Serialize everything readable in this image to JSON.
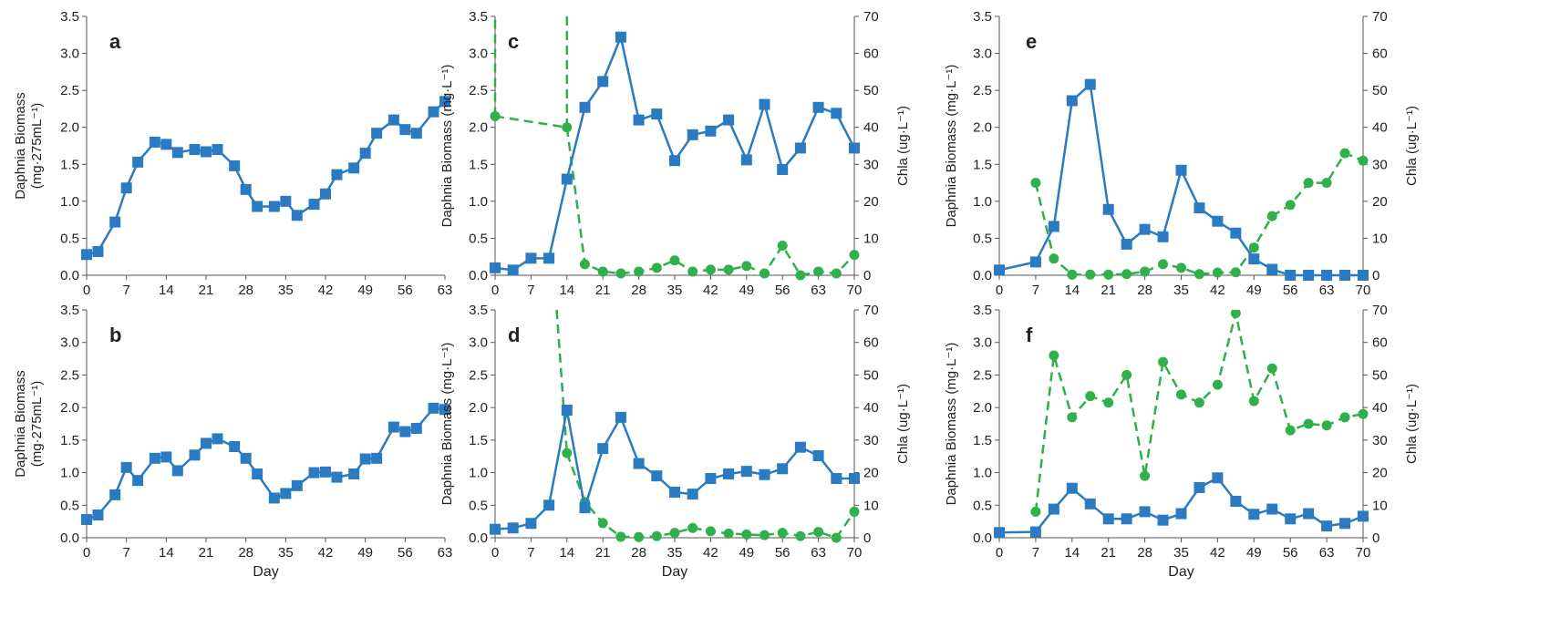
{
  "colors": {
    "daphnia": "#2a7bc1",
    "chla": "#2fb04a",
    "axis": "#555555"
  },
  "labels": {
    "day": "Day",
    "biomass_a": "Daphnia Biomass",
    "biomass_a_unit": "(mg·275mL⁻¹)",
    "biomass_c": "Daphnia Biomass (mg·L⁻¹)",
    "chla": "Chla (ug·L⁻¹)"
  },
  "chart_data": [
    {
      "panel": "a",
      "type": "line",
      "ylabel": "Daphnia Biomass (mg·275mL⁻¹)",
      "xlabel": "",
      "ylim": [
        0,
        3.5
      ],
      "yticks": [
        "0.0",
        "0.5",
        "1.0",
        "1.5",
        "2.0",
        "2.5",
        "3.0",
        "3.5"
      ],
      "xlim": [
        0,
        63
      ],
      "xticks": [
        "0",
        "7",
        "14",
        "21",
        "28",
        "35",
        "42",
        "49",
        "56",
        "63"
      ],
      "series": [
        {
          "marker": "square",
          "x": [
            0,
            2,
            5,
            7,
            9,
            12,
            14,
            16,
            19,
            21,
            23,
            26,
            28,
            30,
            33,
            35,
            37,
            40,
            42,
            44,
            47,
            49,
            51,
            54,
            56,
            58,
            61,
            63
          ],
          "y": [
            0.28,
            0.32,
            0.72,
            1.18,
            1.53,
            1.8,
            1.77,
            1.66,
            1.7,
            1.67,
            1.7,
            1.48,
            1.16,
            0.93,
            0.93,
            1.0,
            0.81,
            0.96,
            1.1,
            1.36,
            1.45,
            1.65,
            1.92,
            2.1,
            1.97,
            1.92,
            2.21,
            2.35
          ]
        }
      ]
    },
    {
      "panel": "b",
      "type": "line",
      "ylabel": "Daphnia Biomass (mg·275mL⁻¹)",
      "xlabel": "Day",
      "ylim": [
        0,
        3.5
      ],
      "yticks": [
        "0.0",
        "0.5",
        "1.0",
        "1.5",
        "2.0",
        "2.5",
        "3.0",
        "3.5"
      ],
      "xlim": [
        0,
        63
      ],
      "xticks": [
        "0",
        "7",
        "14",
        "21",
        "28",
        "35",
        "42",
        "49",
        "56",
        "63"
      ],
      "series": [
        {
          "marker": "square",
          "x": [
            0,
            2,
            5,
            7,
            9,
            12,
            14,
            16,
            19,
            21,
            23,
            26,
            28,
            30,
            33,
            35,
            37,
            40,
            42,
            44,
            47,
            49,
            51,
            54,
            56,
            58,
            61,
            63
          ],
          "y": [
            0.28,
            0.35,
            0.66,
            1.08,
            0.88,
            1.22,
            1.24,
            1.03,
            1.27,
            1.45,
            1.52,
            1.4,
            1.22,
            0.98,
            0.61,
            0.68,
            0.8,
            1.0,
            1.01,
            0.93,
            0.98,
            1.21,
            1.22,
            1.7,
            1.63,
            1.68,
            1.99,
            1.97
          ]
        }
      ]
    },
    {
      "panel": "c",
      "type": "line",
      "ylabel": "Daphnia Biomass (mg·L⁻¹)",
      "y2label": "Chla (ug·L⁻¹)",
      "xlabel": "",
      "ylim": [
        0,
        3.5
      ],
      "y2lim": [
        0,
        70
      ],
      "yticks": [
        "0.0",
        "0.5",
        "1.0",
        "1.5",
        "2.0",
        "2.5",
        "3.0",
        "3.5"
      ],
      "y2ticks": [
        "0",
        "10",
        "20",
        "30",
        "40",
        "50",
        "60",
        "70"
      ],
      "xlim": [
        0,
        70
      ],
      "xticks": [
        "0",
        "7",
        "14",
        "21",
        "28",
        "35",
        "42",
        "49",
        "56",
        "63",
        "70"
      ],
      "daphnia": {
        "x": [
          0,
          3.5,
          7,
          10.5,
          14,
          17.5,
          21,
          24.5,
          28,
          31.5,
          35,
          38.5,
          42,
          45.5,
          49,
          52.5,
          56,
          59.5,
          63,
          66.5,
          70
        ],
        "y": [
          0.1,
          0.07,
          0.23,
          0.23,
          1.3,
          2.27,
          2.62,
          3.22,
          2.1,
          2.18,
          1.55,
          1.9,
          1.95,
          2.1,
          1.56,
          2.31,
          1.43,
          1.72,
          2.27,
          2.19,
          1.72
        ]
      },
      "chla": {
        "x": [
          0,
          14,
          17.5,
          21,
          24.5,
          28,
          31.5,
          35,
          38.5,
          42,
          45.5,
          49,
          52.5,
          56,
          59.5,
          63,
          66.5,
          70
        ],
        "y": [
          43,
          40,
          3,
          1,
          0.5,
          1,
          2,
          4,
          1,
          1.5,
          1.5,
          2.5,
          0.5,
          8,
          0,
          1,
          0.5,
          5.5
        ]
      },
      "chla_offscale_lines": [
        [
          0,
          43,
          0,
          70
        ],
        [
          14,
          70,
          14,
          40
        ]
      ]
    },
    {
      "panel": "d",
      "type": "line",
      "ylabel": "Daphnia Biomass (mg·L⁻¹)",
      "y2label": "Chla (ug·L⁻¹)",
      "xlabel": "Day",
      "ylim": [
        0,
        3.5
      ],
      "y2lim": [
        0,
        70
      ],
      "yticks": [
        "0.0",
        "0.5",
        "1.0",
        "1.5",
        "2.0",
        "2.5",
        "3.0",
        "3.5"
      ],
      "y2ticks": [
        "0",
        "10",
        "20",
        "30",
        "40",
        "50",
        "60",
        "70"
      ],
      "xlim": [
        0,
        70
      ],
      "xticks": [
        "0",
        "7",
        "14",
        "21",
        "28",
        "35",
        "42",
        "49",
        "56",
        "63",
        "70"
      ],
      "daphnia": {
        "x": [
          0,
          3.5,
          7,
          10.5,
          14,
          17.5,
          21,
          24.5,
          28,
          31.5,
          35,
          38.5,
          42,
          45.5,
          49,
          52.5,
          56,
          59.5,
          63,
          66.5,
          70
        ],
        "y": [
          0.13,
          0.15,
          0.22,
          0.5,
          1.96,
          0.46,
          1.37,
          1.85,
          1.14,
          0.95,
          0.7,
          0.67,
          0.91,
          0.98,
          1.02,
          0.97,
          1.06,
          1.39,
          1.26,
          0.91,
          0.91
        ]
      },
      "chla": {
        "x": [
          14,
          17.5,
          21,
          24.5,
          28,
          31.5,
          35,
          38.5,
          42,
          45.5,
          49,
          52.5,
          56,
          59.5,
          63,
          66.5,
          70
        ],
        "y": [
          26,
          11,
          4.5,
          0.3,
          0.2,
          0.5,
          1.5,
          3,
          2,
          1.3,
          1,
          0.8,
          1.5,
          0.5,
          1.8,
          0,
          8
        ]
      },
      "chla_offscale_lines": [
        [
          12,
          70,
          14,
          26
        ]
      ]
    },
    {
      "panel": "e",
      "type": "line",
      "ylabel": "Daphnia Biomass (mg·L⁻¹)",
      "y2label": "Chla (ug·L⁻¹)",
      "xlabel": "",
      "ylim": [
        0,
        3.5
      ],
      "y2lim": [
        0,
        70
      ],
      "yticks": [
        "0.0",
        "0.5",
        "1.0",
        "1.5",
        "2.0",
        "2.5",
        "3.0",
        "3.5"
      ],
      "y2ticks": [
        "0",
        "10",
        "20",
        "30",
        "40",
        "50",
        "60",
        "70"
      ],
      "xlim": [
        0,
        70
      ],
      "xticks": [
        "0",
        "7",
        "14",
        "21",
        "28",
        "35",
        "42",
        "49",
        "56",
        "63",
        "70"
      ],
      "daphnia": {
        "x": [
          0,
          7,
          10.5,
          14,
          17.5,
          21,
          24.5,
          28,
          31.5,
          35,
          38.5,
          42,
          45.5,
          49,
          52.5,
          56,
          59.5,
          63,
          66.5,
          70
        ],
        "y": [
          0.07,
          0.18,
          0.66,
          2.36,
          2.58,
          0.89,
          0.42,
          0.62,
          0.52,
          1.42,
          0.91,
          0.73,
          0.57,
          0.22,
          0.08,
          0.0,
          0.0,
          0.0,
          0.0,
          0.0
        ]
      },
      "chla": {
        "x": [
          7,
          10.5,
          14,
          17.5,
          21,
          24.5,
          28,
          31.5,
          35,
          38.5,
          42,
          45.5,
          49,
          52.5,
          56,
          59.5,
          63,
          66.5,
          70
        ],
        "y": [
          25,
          4.5,
          0.2,
          0.2,
          0.2,
          0.3,
          1,
          3,
          2,
          0.3,
          0.7,
          0.8,
          7.5,
          16,
          19,
          25,
          25,
          33,
          31
        ]
      }
    },
    {
      "panel": "f",
      "type": "line",
      "ylabel": "Daphnia Biomass (mg·L⁻¹)",
      "y2label": "Chla (ug·L⁻¹)",
      "xlabel": "Day",
      "ylim": [
        0,
        3.5
      ],
      "y2lim": [
        0,
        70
      ],
      "yticks": [
        "0.0",
        "0.5",
        "1.0",
        "1.5",
        "2.0",
        "2.5",
        "3.0",
        "3.5"
      ],
      "y2ticks": [
        "0",
        "10",
        "20",
        "30",
        "40",
        "50",
        "60",
        "70"
      ],
      "xlim": [
        0,
        70
      ],
      "xticks": [
        "0",
        "7",
        "14",
        "21",
        "28",
        "35",
        "42",
        "49",
        "56",
        "63",
        "70"
      ],
      "daphnia": {
        "x": [
          0,
          7,
          10.5,
          14,
          17.5,
          21,
          24.5,
          28,
          31.5,
          35,
          38.5,
          42,
          45.5,
          49,
          52.5,
          56,
          59.5,
          63,
          66.5,
          70
        ],
        "y": [
          0.08,
          0.09,
          0.44,
          0.76,
          0.52,
          0.29,
          0.29,
          0.4,
          0.27,
          0.37,
          0.77,
          0.92,
          0.56,
          0.36,
          0.44,
          0.29,
          0.37,
          0.18,
          0.22,
          0.33
        ]
      },
      "chla": {
        "x": [
          7,
          10.5,
          14,
          17.5,
          21,
          24.5,
          28,
          31.5,
          35,
          38.5,
          42,
          45.5,
          49,
          52.5,
          56,
          59.5,
          63,
          66.5,
          70
        ],
        "y": [
          8,
          56,
          37,
          43.5,
          41.5,
          50,
          19,
          54,
          44,
          41.5,
          47,
          69,
          42,
          52,
          33,
          35,
          34.5,
          37,
          38
        ]
      }
    }
  ]
}
